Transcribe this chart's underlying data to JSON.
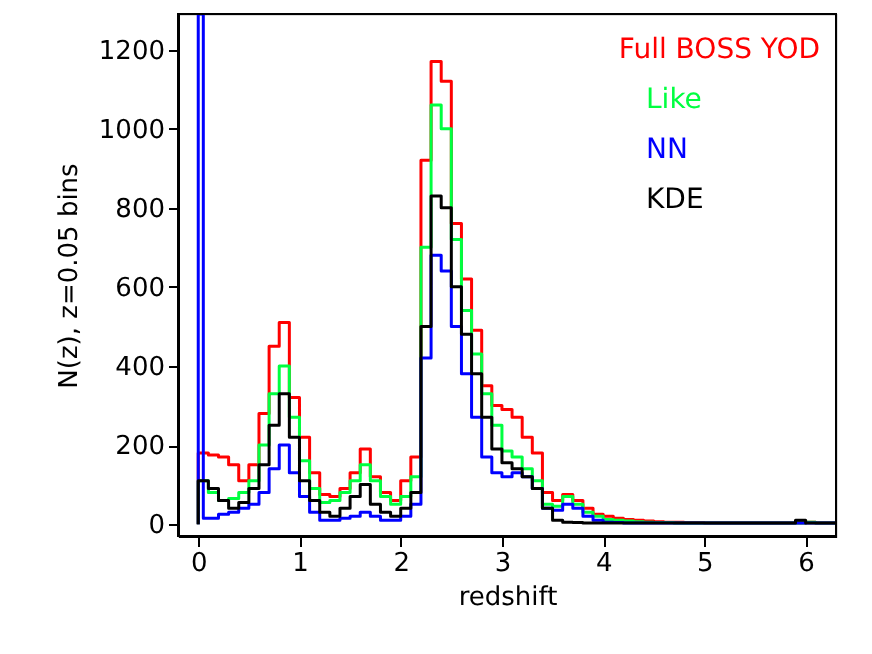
{
  "chart_data": {
    "type": "histogram",
    "xlabel": "redshift",
    "ylabel": "N(z),   z=0.05 bins",
    "bins": [
      0,
      0.05,
      0.1,
      0.2,
      0.3,
      0.4,
      0.5,
      0.6,
      0.7,
      0.8,
      0.9,
      1.0,
      1.1,
      1.2,
      1.3,
      1.4,
      1.5,
      1.6,
      1.7,
      1.8,
      1.9,
      2.0,
      2.1,
      2.2,
      2.3,
      2.4,
      2.5,
      2.6,
      2.7,
      2.8,
      2.9,
      3.0,
      3.1,
      3.2,
      3.3,
      3.4,
      3.5,
      3.6,
      3.7,
      3.8,
      3.9,
      4.0,
      4.1,
      4.2,
      4.3,
      4.4,
      4.5,
      4.6,
      4.7,
      4.8,
      4.9,
      5.0,
      5.1,
      5.2,
      5.3,
      5.4,
      5.5,
      5.6,
      5.7,
      5.8,
      5.9,
      6.0,
      6.1,
      6.2,
      6.3
    ],
    "series": [
      {
        "name": "Full BOSS YOD",
        "color": "#ff0000",
        "values": [
          180,
          180,
          175,
          170,
          150,
          110,
          150,
          280,
          450,
          510,
          320,
          220,
          130,
          75,
          70,
          90,
          130,
          190,
          120,
          80,
          60,
          110,
          170,
          920,
          1170,
          1120,
          760,
          620,
          490,
          350,
          300,
          290,
          270,
          220,
          180,
          80,
          60,
          75,
          60,
          40,
          25,
          20,
          15,
          12,
          10,
          8,
          6,
          5,
          5,
          4,
          4,
          3,
          3,
          3,
          3,
          3,
          3,
          3,
          3,
          3,
          3,
          5,
          3,
          3
        ]
      },
      {
        "name": "Like",
        "color": "#00ff40",
        "values": [
          110,
          110,
          80,
          60,
          65,
          80,
          110,
          200,
          330,
          400,
          270,
          160,
          90,
          55,
          60,
          80,
          110,
          150,
          110,
          70,
          50,
          70,
          120,
          700,
          1060,
          1000,
          720,
          540,
          430,
          330,
          250,
          185,
          170,
          140,
          110,
          50,
          45,
          70,
          50,
          30,
          20,
          12,
          10,
          8,
          6,
          5,
          4,
          4,
          3,
          3,
          3,
          3,
          3,
          3,
          3,
          3,
          3,
          3,
          3,
          3,
          3,
          5,
          3,
          3
        ]
      },
      {
        "name": "NN",
        "color": "#0000ff",
        "values": [
          1290,
          15,
          15,
          25,
          30,
          40,
          50,
          80,
          140,
          200,
          130,
          70,
          30,
          10,
          10,
          15,
          20,
          30,
          20,
          10,
          10,
          20,
          50,
          420,
          680,
          640,
          500,
          380,
          270,
          170,
          130,
          120,
          130,
          120,
          90,
          40,
          35,
          50,
          40,
          20,
          10,
          5,
          4,
          3,
          3,
          3,
          3,
          3,
          3,
          3,
          3,
          3,
          3,
          3,
          3,
          3,
          3,
          3,
          3,
          3,
          3,
          3,
          3,
          3
        ]
      },
      {
        "name": "KDE",
        "color": "#000000",
        "values": [
          110,
          110,
          90,
          60,
          40,
          55,
          90,
          150,
          250,
          330,
          220,
          110,
          60,
          30,
          20,
          40,
          70,
          100,
          50,
          30,
          20,
          40,
          80,
          500,
          830,
          800,
          600,
          480,
          380,
          270,
          190,
          155,
          140,
          120,
          90,
          40,
          10,
          5,
          4,
          3,
          3,
          3,
          3,
          3,
          3,
          3,
          3,
          3,
          3,
          3,
          3,
          3,
          3,
          3,
          3,
          3,
          3,
          3,
          3,
          3,
          10,
          3,
          3,
          3
        ]
      }
    ],
    "xlim": [
      -0.2,
      6.3
    ],
    "xticks": [
      0,
      1,
      2,
      3,
      4,
      5,
      6
    ],
    "ylim": [
      -30,
      1290
    ],
    "yticks": [
      0,
      200,
      400,
      600,
      800,
      1000,
      1200
    ],
    "grid": false,
    "legend": "top right"
  }
}
